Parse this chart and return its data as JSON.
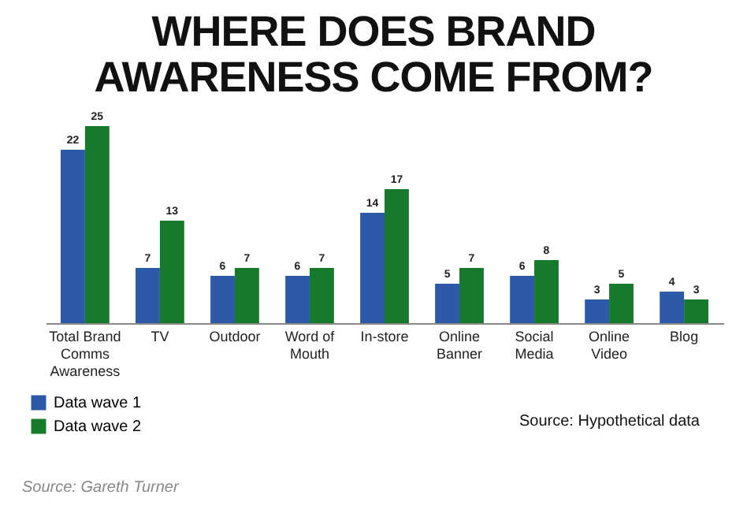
{
  "chart_data": {
    "type": "bar",
    "title": "WHERE DOES BRAND AWARENESS COME FROM?",
    "categories": [
      "Total Brand Comms Awareness",
      "TV",
      "Outdoor",
      "Word of Mouth",
      "In-store",
      "Online Banner",
      "Social Media",
      "Online Video",
      "Blog"
    ],
    "series": [
      {
        "name": "Data wave 1",
        "color": "#2c5aa8",
        "values": [
          22,
          7,
          6,
          6,
          14,
          5,
          6,
          3,
          4
        ]
      },
      {
        "name": "Data wave 2",
        "color": "#157a2c",
        "values": [
          25,
          13,
          7,
          7,
          17,
          7,
          8,
          5,
          3
        ]
      }
    ],
    "data_labels": true,
    "legend": "bottom left",
    "grid": false,
    "annotations": [
      "Source:  Hypothetical data",
      "Source: Gareth Turner"
    ]
  }
}
